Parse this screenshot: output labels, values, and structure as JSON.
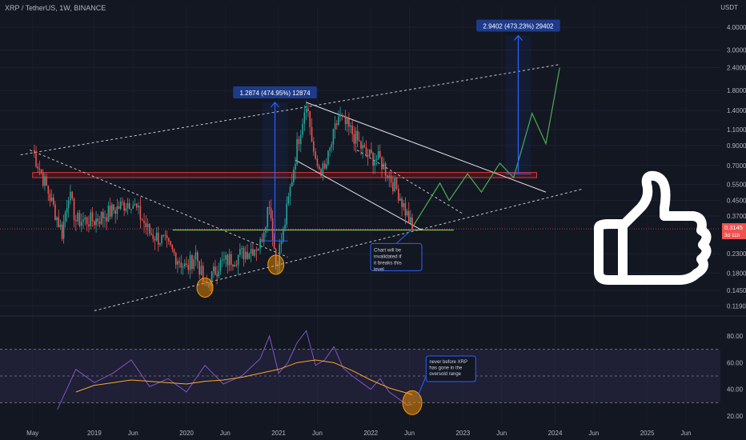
{
  "header": {
    "symbol": "XRP / TetherUS, 1W, BINANCE",
    "unit": "USDT"
  },
  "chart_data": [
    {
      "type": "candlestick",
      "yscale": "log",
      "ylim": [
        0.108,
        5.2
      ],
      "y_ticks": [
        "4.0000",
        "3.0000",
        "2.4000",
        "1.8000",
        "1.4000",
        "1.1000",
        "0.9000",
        "0.7000",
        "0.5500",
        "0.4500",
        "0.3700",
        "0.2300",
        "0.1800",
        "0.1450",
        "0.1190"
      ],
      "y_tick_values": [
        4.0,
        3.0,
        2.4,
        1.8,
        1.4,
        1.1,
        0.9,
        0.7,
        0.55,
        0.45,
        0.37,
        0.23,
        0.18,
        0.145,
        0.119
      ],
      "x_ticks": [
        "May",
        "2019",
        "Jun",
        "2020",
        "Jun",
        "2021",
        "Jun",
        "2022",
        "Jun",
        "2023",
        "Jun",
        "2024",
        "Jun",
        "2025",
        "Jun"
      ],
      "x_tick_values": [
        2018.33,
        2019.0,
        2019.42,
        2020.0,
        2020.42,
        2021.0,
        2021.42,
        2022.0,
        2022.42,
        2023.0,
        2023.42,
        2024.0,
        2024.42,
        2025.0,
        2025.42
      ],
      "price_label": {
        "value": 0.3145,
        "text": "0.3145",
        "countdown": "3d 11h"
      },
      "key_points": [
        {
          "t": 2018.33,
          "p": 0.85
        },
        {
          "t": 2018.5,
          "p": 0.5
        },
        {
          "t": 2018.65,
          "p": 0.3
        },
        {
          "t": 2018.72,
          "p": 0.5
        },
        {
          "t": 2018.8,
          "p": 0.35
        },
        {
          "t": 2019.0,
          "p": 0.35
        },
        {
          "t": 2019.4,
          "p": 0.45
        },
        {
          "t": 2019.6,
          "p": 0.3
        },
        {
          "t": 2019.75,
          "p": 0.27
        },
        {
          "t": 2020.0,
          "p": 0.19
        },
        {
          "t": 2020.1,
          "p": 0.23
        },
        {
          "t": 2020.2,
          "p": 0.15
        },
        {
          "t": 2020.35,
          "p": 0.2
        },
        {
          "t": 2020.6,
          "p": 0.23
        },
        {
          "t": 2020.8,
          "p": 0.26
        },
        {
          "t": 2020.9,
          "p": 0.45
        },
        {
          "t": 2020.97,
          "p": 0.2
        },
        {
          "t": 2021.05,
          "p": 0.3
        },
        {
          "t": 2021.2,
          "p": 0.9
        },
        {
          "t": 2021.3,
          "p": 1.6
        },
        {
          "t": 2021.4,
          "p": 0.7
        },
        {
          "t": 2021.5,
          "p": 0.65
        },
        {
          "t": 2021.65,
          "p": 1.3
        },
        {
          "t": 2021.8,
          "p": 1.05
        },
        {
          "t": 2021.95,
          "p": 0.8
        },
        {
          "t": 2022.1,
          "p": 0.75
        },
        {
          "t": 2022.3,
          "p": 0.5
        },
        {
          "t": 2022.45,
          "p": 0.3145
        }
      ],
      "projection_path": [
        {
          "t": 2022.45,
          "p": 0.32
        },
        {
          "t": 2022.75,
          "p": 0.56
        },
        {
          "t": 2022.85,
          "p": 0.45
        },
        {
          "t": 2023.05,
          "p": 0.63
        },
        {
          "t": 2023.2,
          "p": 0.5
        },
        {
          "t": 2023.4,
          "p": 0.72
        },
        {
          "t": 2023.55,
          "p": 0.6
        },
        {
          "t": 2023.75,
          "p": 1.35
        },
        {
          "t": 2023.9,
          "p": 0.92
        },
        {
          "t": 2024.05,
          "p": 2.4
        }
      ],
      "annotations": [
        {
          "label": "1.2874 (474.95%) 12874",
          "from": {
            "t": 2020.96,
            "p": 0.27
          },
          "to": {
            "t": 2020.96,
            "p": 1.55
          }
        },
        {
          "label": "2.9402 (473.23%) 29402",
          "from": {
            "t": 2023.6,
            "p": 0.63
          },
          "to": {
            "t": 2023.6,
            "p": 3.6
          }
        },
        {
          "label": "Chart will be invalidated if it breaks this level",
          "anchor": {
            "t": 2022.45,
            "p": 0.32
          }
        }
      ],
      "resistance_zone": [
        0.6,
        0.64
      ],
      "support_level": 0.31,
      "colors": {
        "up": "#26a69a",
        "down": "#ef5350",
        "projection": "#4caf50",
        "measure": "#2962ff",
        "zone": "#b71c1c"
      }
    },
    {
      "type": "line",
      "ylim": [
        14,
        92
      ],
      "y_ticks": [
        "80.00",
        "60.00",
        "40.00",
        "20.00"
      ],
      "y_tick_values": [
        80,
        60,
        40,
        20
      ],
      "band": [
        30,
        70
      ],
      "series": [
        {
          "values_t": [
            2018.6,
            2018.7,
            2018.8,
            2019.0,
            2019.2,
            2019.4,
            2019.6,
            2019.8,
            2020.0,
            2020.2,
            2020.4,
            2020.6,
            2020.8,
            2020.9,
            2021.0,
            2021.1,
            2021.2,
            2021.3,
            2021.4,
            2021.5,
            2021.6,
            2021.7,
            2021.8,
            2021.9,
            2022.0,
            2022.1,
            2022.2,
            2022.3,
            2022.4,
            2022.45
          ],
          "values": [
            25,
            40,
            55,
            45,
            52,
            62,
            42,
            48,
            38,
            58,
            44,
            50,
            63,
            80,
            52,
            60,
            75,
            84,
            58,
            62,
            72,
            56,
            50,
            45,
            40,
            48,
            38,
            33,
            28,
            29
          ]
        },
        {
          "values_t": [
            2018.8,
            2019.0,
            2019.2,
            2019.4,
            2019.6,
            2019.8,
            2020.0,
            2020.2,
            2020.4,
            2020.6,
            2020.8,
            2021.0,
            2021.2,
            2021.4,
            2021.6,
            2021.8,
            2022.0,
            2022.2,
            2022.4,
            2022.45
          ],
          "values": [
            38,
            43,
            45,
            47,
            46,
            45,
            44,
            46,
            47,
            49,
            52,
            55,
            60,
            62,
            60,
            54,
            47,
            41,
            37,
            36
          ]
        }
      ],
      "annotation": "never before XRP has gone in the oversold range"
    }
  ]
}
